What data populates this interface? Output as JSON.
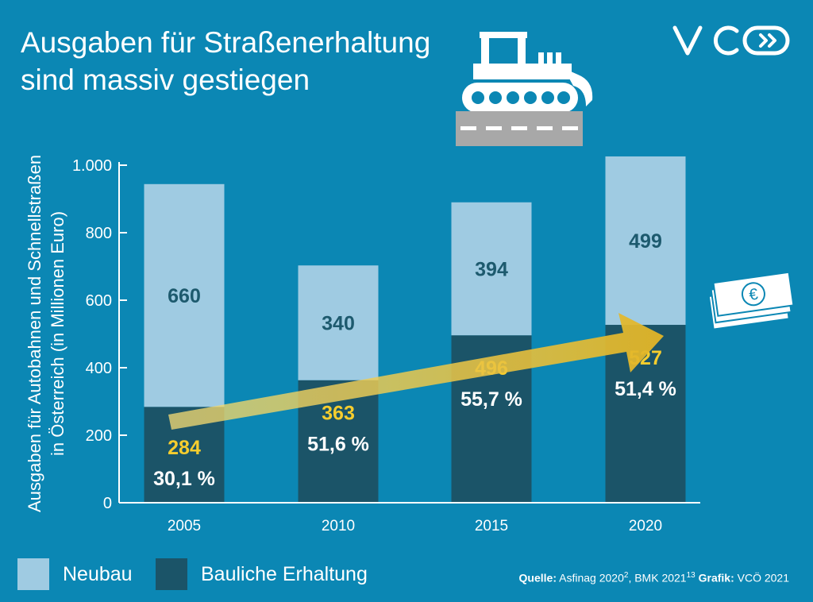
{
  "title": {
    "line1": "Ausgaben für Straßenerhaltung",
    "line2": "sind massiv gestiegen"
  },
  "logo": {
    "text": "VCÖ"
  },
  "icons": {
    "bulldozer": "bulldozer-icon",
    "cash": "euro-banknotes-icon"
  },
  "colors": {
    "background": "#0b87b4",
    "neubau": "#9fcbe2",
    "erhaltung": "#1b5468",
    "highlight": "#f6cd2e",
    "arrow": "#e9c234"
  },
  "chart_data": {
    "type": "bar",
    "stacked": true,
    "categories": [
      "2005",
      "2010",
      "2015",
      "2020"
    ],
    "series": [
      {
        "name": "Bauliche Erhaltung",
        "values": [
          284,
          363,
          496,
          527
        ]
      },
      {
        "name": "Neubau",
        "values": [
          660,
          340,
          394,
          499
        ]
      }
    ],
    "shares": [
      "30,1 %",
      "51,6 %",
      "55,7 %",
      "51,4 %"
    ],
    "ylabel_line1": "Ausgaben für Autobahnen und Schnellstraßen",
    "ylabel_line2": "in Österreich (in Millionen Euro)",
    "yticks": [
      0,
      200,
      400,
      600,
      800,
      1000
    ],
    "ytick_labels": [
      "0",
      "200",
      "400",
      "600",
      "800",
      "1.000"
    ],
    "ylim": [
      0,
      1000
    ],
    "grid": false,
    "legend_position": "bottom-left",
    "annotation": "upward arrow indicating rising maintenance spending"
  },
  "legend": [
    {
      "label": "Neubau"
    },
    {
      "label": "Bauliche Erhaltung"
    }
  ],
  "source": {
    "quelle_label": "Quelle:",
    "quelle_text": "Asfinag 2020",
    "quelle_sup1": "2",
    "quelle_mid": ", BMK 2021",
    "quelle_sup2": "13",
    "grafik_label": "Grafik:",
    "grafik_text": "VCÖ 2021"
  }
}
